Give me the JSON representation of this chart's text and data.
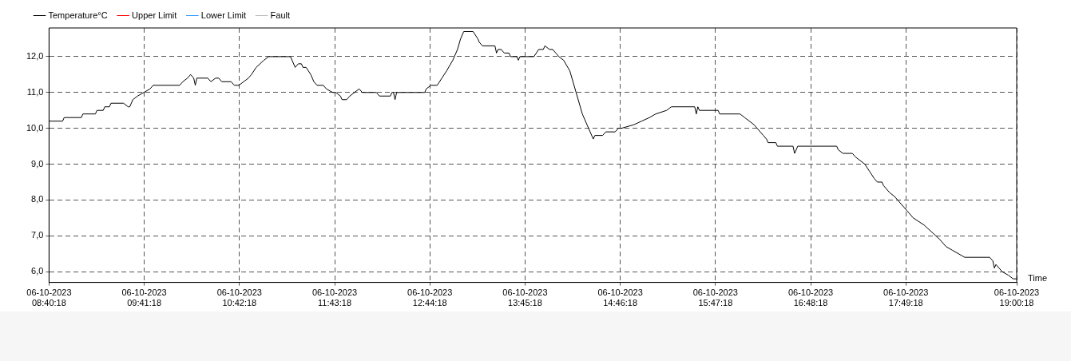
{
  "chart_data": {
    "type": "line",
    "xlabel": "Time",
    "xlim": [
      "2023-10-06T08:40:18",
      "2023-10-06T19:00:18"
    ],
    "xticks": [
      {
        "value": "2023-10-06T08:40:18",
        "label": "06-10-2023\n08:40:18"
      },
      {
        "value": "2023-10-06T09:41:18",
        "label": "06-10-2023\n09:41:18"
      },
      {
        "value": "2023-10-06T10:42:18",
        "label": "06-10-2023\n10:42:18"
      },
      {
        "value": "2023-10-06T11:43:18",
        "label": "06-10-2023\n11:43:18"
      },
      {
        "value": "2023-10-06T12:44:18",
        "label": "06-10-2023\n12:44:18"
      },
      {
        "value": "2023-10-06T13:45:18",
        "label": "06-10-2023\n13:45:18"
      },
      {
        "value": "2023-10-06T14:46:18",
        "label": "06-10-2023\n14:46:18"
      },
      {
        "value": "2023-10-06T15:47:18",
        "label": "06-10-2023\n15:47:18"
      },
      {
        "value": "2023-10-06T16:48:18",
        "label": "06-10-2023\n16:48:18"
      },
      {
        "value": "2023-10-06T17:49:18",
        "label": "06-10-2023\n17:49:18"
      },
      {
        "value": "2023-10-06T19:00:18",
        "label": "06-10-2023\n19:00:18"
      }
    ],
    "ylim": [
      5.7,
      12.8
    ],
    "yticks": [
      {
        "value": 6,
        "label": "6,0"
      },
      {
        "value": 7,
        "label": "7,0"
      },
      {
        "value": 8,
        "label": "8,0"
      },
      {
        "value": 9,
        "label": "9,0"
      },
      {
        "value": 10,
        "label": "10,0"
      },
      {
        "value": 11,
        "label": "11,0"
      },
      {
        "value": 12,
        "label": "12,0"
      }
    ],
    "grid": true,
    "legend": "top left",
    "marker": "none",
    "series": [
      {
        "name": "Temperature°C",
        "color": "#000000",
        "line_style": "solid",
        "x": [
          "2023-10-06T08:40:18",
          "2023-10-06T08:49",
          "2023-10-06T08:50",
          "2023-10-06T09:01",
          "2023-10-06T09:02",
          "2023-10-06T09:10",
          "2023-10-06T09:11",
          "2023-10-06T09:15",
          "2023-10-06T09:16",
          "2023-10-06T09:19",
          "2023-10-06T09:20",
          "2023-10-06T09:28",
          "2023-10-06T09:31",
          "2023-10-06T09:32",
          "2023-10-06T09:34",
          "2023-10-06T09:37",
          "2023-10-06T09:41",
          "2023-10-06T09:45",
          "2023-10-06T09:47",
          "2023-10-06T10:04",
          "2023-10-06T10:06",
          "2023-10-06T10:09",
          "2023-10-06T10:11",
          "2023-10-06T10:13",
          "2023-10-06T10:14",
          "2023-10-06T10:15",
          "2023-10-06T10:22",
          "2023-10-06T10:24",
          "2023-10-06T10:27",
          "2023-10-06T10:29",
          "2023-10-06T10:31",
          "2023-10-06T10:37",
          "2023-10-06T10:39",
          "2023-10-06T10:42",
          "2023-10-06T10:45",
          "2023-10-06T10:48",
          "2023-10-06T10:50",
          "2023-10-06T10:53",
          "2023-10-06T10:58",
          "2023-10-06T11:01",
          "2023-10-06T11:15",
          "2023-10-06T11:18",
          "2023-10-06T11:20",
          "2023-10-06T11:22",
          "2023-10-06T11:23",
          "2023-10-06T11:25",
          "2023-10-06T11:28",
          "2023-10-06T11:30",
          "2023-10-06T11:32",
          "2023-10-06T11:36",
          "2023-10-06T11:38",
          "2023-10-06T11:42",
          "2023-10-06T11:44",
          "2023-10-06T11:47",
          "2023-10-06T11:48",
          "2023-10-06T11:51",
          "2023-10-06T11:53",
          "2023-10-06T11:56",
          "2023-10-06T11:59",
          "2023-10-06T12:01",
          "2023-10-06T12:10",
          "2023-10-06T12:12",
          "2023-10-06T12:19",
          "2023-10-06T12:20",
          "2023-10-06T12:21",
          "2023-10-06T12:22",
          "2023-10-06T12:23",
          "2023-10-06T12:41",
          "2023-10-06T12:42",
          "2023-10-06T12:45",
          "2023-10-06T12:49",
          "2023-10-06T12:52",
          "2023-10-06T12:55",
          "2023-10-06T12:59",
          "2023-10-06T13:02",
          "2023-10-06T13:04",
          "2023-10-06T13:06",
          "2023-10-06T13:12",
          "2023-10-06T13:15",
          "2023-10-06T13:16",
          "2023-10-06T13:18",
          "2023-10-06T13:26",
          "2023-10-06T13:27",
          "2023-10-06T13:28",
          "2023-10-06T13:30",
          "2023-10-06T13:32",
          "2023-10-06T13:35",
          "2023-10-06T13:36",
          "2023-10-06T13:40",
          "2023-10-06T13:41",
          "2023-10-06T13:42",
          "2023-10-06T13:51",
          "2023-10-06T13:54",
          "2023-10-06T13:57",
          "2023-10-06T13:58",
          "2023-10-06T14:01",
          "2023-10-06T14:03",
          "2023-10-06T14:05",
          "2023-10-06T14:07",
          "2023-10-06T14:10",
          "2023-10-06T14:14",
          "2023-10-06T14:18",
          "2023-10-06T14:22",
          "2023-10-06T14:25",
          "2023-10-06T14:27",
          "2023-10-06T14:29",
          "2023-10-06T14:30",
          "2023-10-06T14:35",
          "2023-10-06T14:37",
          "2023-10-06T14:43",
          "2023-10-06T14:45",
          "2023-10-06T14:47",
          "2023-10-06T14:55",
          "2023-10-06T15:00",
          "2023-10-06T15:05",
          "2023-10-06T15:09",
          "2023-10-06T15:16",
          "2023-10-06T15:19",
          "2023-10-06T15:34",
          "2023-10-06T15:35",
          "2023-10-06T15:36",
          "2023-10-06T15:37",
          "2023-10-06T15:49",
          "2023-10-06T15:50",
          "2023-10-06T16:03",
          "2023-10-06T16:06",
          "2023-10-06T16:12",
          "2023-10-06T16:16",
          "2023-10-06T16:18",
          "2023-10-06T16:20",
          "2023-10-06T16:21",
          "2023-10-06T16:26",
          "2023-10-06T16:27",
          "2023-10-06T16:37",
          "2023-10-06T16:38",
          "2023-10-06T16:40",
          "2023-10-06T17:05",
          "2023-10-06T17:06",
          "2023-10-06T17:09",
          "2023-10-06T17:15",
          "2023-10-06T17:17",
          "2023-10-06T17:20",
          "2023-10-06T17:23",
          "2023-10-06T17:26",
          "2023-10-06T17:29",
          "2023-10-06T17:31",
          "2023-10-06T17:34",
          "2023-10-06T17:35",
          "2023-10-06T17:39",
          "2023-10-06T17:42",
          "2023-10-06T17:44",
          "2023-10-06T17:48",
          "2023-10-06T17:50",
          "2023-10-06T17:54",
          "2023-10-06T18:01",
          "2023-10-06T18:06",
          "2023-10-06T18:11",
          "2023-10-06T18:15",
          "2023-10-06T18:19",
          "2023-10-06T18:23",
          "2023-10-06T18:27",
          "2023-10-06T18:43",
          "2023-10-06T18:45",
          "2023-10-06T18:46",
          "2023-10-06T18:47",
          "2023-10-06T18:51",
          "2023-10-06T18:55",
          "2023-10-06T18:58",
          "2023-10-06T19:00:18"
        ],
        "values": [
          10.2,
          10.2,
          10.3,
          10.3,
          10.4,
          10.4,
          10.5,
          10.5,
          10.6,
          10.6,
          10.7,
          10.7,
          10.6,
          10.6,
          10.8,
          10.9,
          11.0,
          11.1,
          11.2,
          11.2,
          11.3,
          11.4,
          11.5,
          11.4,
          11.2,
          11.4,
          11.4,
          11.3,
          11.4,
          11.4,
          11.3,
          11.3,
          11.2,
          11.2,
          11.3,
          11.4,
          11.5,
          11.7,
          11.9,
          12.0,
          12.0,
          11.7,
          11.8,
          11.8,
          11.7,
          11.7,
          11.5,
          11.3,
          11.2,
          11.2,
          11.1,
          11.0,
          11.0,
          10.9,
          10.8,
          10.8,
          10.9,
          11.0,
          11.1,
          11.0,
          11.0,
          10.9,
          10.9,
          11.0,
          11.0,
          10.8,
          11.0,
          11.0,
          11.1,
          11.2,
          11.2,
          11.4,
          11.6,
          11.9,
          12.2,
          12.5,
          12.7,
          12.7,
          12.5,
          12.4,
          12.3,
          12.3,
          12.1,
          12.2,
          12.2,
          12.1,
          12.1,
          12.0,
          12.0,
          11.9,
          12.0,
          12.0,
          12.2,
          12.2,
          12.3,
          12.2,
          12.2,
          12.1,
          12.0,
          11.9,
          11.6,
          11.0,
          10.4,
          10.1,
          9.9,
          9.7,
          9.8,
          9.8,
          9.9,
          9.9,
          10.0,
          10.0,
          10.1,
          10.2,
          10.3,
          10.4,
          10.5,
          10.6,
          10.6,
          10.4,
          10.6,
          10.5,
          10.5,
          10.4,
          10.4,
          10.3,
          10.1,
          9.9,
          9.8,
          9.7,
          9.6,
          9.6,
          9.5,
          9.5,
          9.3,
          9.5,
          9.5,
          9.4,
          9.3,
          9.3,
          9.2,
          9.1,
          9.0,
          8.8,
          8.6,
          8.5,
          8.5,
          8.4,
          8.2,
          8.1,
          8.0,
          7.8,
          7.7,
          7.5,
          7.3,
          7.1,
          6.9,
          6.7,
          6.6,
          6.5,
          6.4,
          6.4,
          6.3,
          6.1,
          6.2,
          6.0,
          5.9,
          5.8,
          5.8
        ]
      },
      {
        "name": "Upper Limit",
        "color": "#ff0000",
        "line_style": "solid"
      },
      {
        "name": "Lower Limit",
        "color": "#3399ff",
        "line_style": "solid"
      },
      {
        "name": "Fault",
        "color": "#bbbbbb",
        "line_style": "dotted"
      }
    ]
  }
}
